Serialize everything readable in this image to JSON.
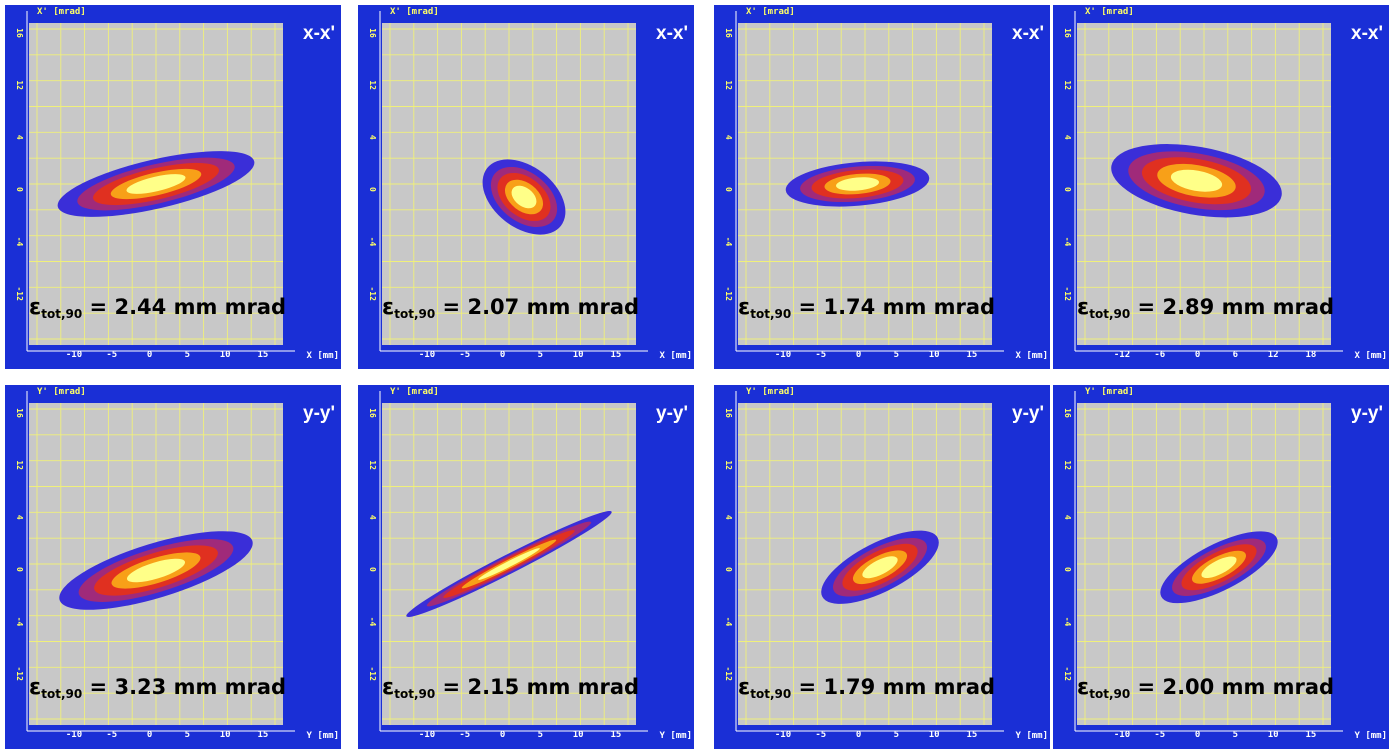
{
  "colors": {
    "background": "#1a2fd6",
    "plot_area": "#c8c8c8",
    "grid": "#f0f07a",
    "contour_outer": "#3a2ed8",
    "contour_mid": "#a02a7a",
    "contour_inner": "#e03020",
    "contour_core": "#f8a018",
    "contour_peak": "#ffff88"
  },
  "subscript": "tot,90",
  "chart_data": [
    {
      "type": "heatmap",
      "title": "x-x'",
      "xlabel": "X [mm]",
      "ylabel": "X' [mrad]",
      "xticks": [
        "-10",
        "-5",
        "0",
        "5",
        "10",
        "15"
      ],
      "yticks": [
        "16",
        "12",
        "4",
        "0",
        "-4",
        "-12"
      ],
      "emittance": "2.44 mm mrad",
      "distribution": {
        "center_x": 0,
        "center_y": 0,
        "spread": [
          14,
          3.6
        ],
        "tilt_deg": 13
      }
    },
    {
      "type": "heatmap",
      "title": "x-x'",
      "xlabel": "X [mm]",
      "ylabel": "X' [mrad]",
      "xticks": [
        "-10",
        "-5",
        "0",
        "5",
        "10",
        "15"
      ],
      "yticks": [
        "16",
        "12",
        "4",
        "0",
        "-4",
        "-12"
      ],
      "emittance": "2.07 mm mrad",
      "distribution": {
        "center_x": 2,
        "center_y": -2,
        "spread": [
          6.5,
          4.5
        ],
        "tilt_deg": -38
      }
    },
    {
      "type": "heatmap",
      "title": "x-x'",
      "xlabel": "X [mm]",
      "ylabel": "X' [mrad]",
      "xticks": [
        "-10",
        "-5",
        "0",
        "5",
        "10",
        "15"
      ],
      "yticks": [
        "16",
        "12",
        "4",
        "0",
        "-4",
        "-12"
      ],
      "emittance": "1.74 mm mrad",
      "distribution": {
        "center_x": -1,
        "center_y": 0,
        "spread": [
          10,
          3.2
        ],
        "tilt_deg": 5
      }
    },
    {
      "type": "heatmap",
      "title": "x-x'",
      "xlabel": "X [mm]",
      "ylabel": "X' [mrad]",
      "xticks": [
        "-12",
        "-6",
        "0",
        "6",
        "12",
        "18"
      ],
      "yticks": [
        "16",
        "12",
        "4",
        "0",
        "-4",
        "-12"
      ],
      "emittance": "2.89 mm mrad",
      "distribution": {
        "center_x": -1,
        "center_y": 0.5,
        "spread": [
          12,
          5
        ],
        "tilt_deg": -10
      }
    },
    {
      "type": "heatmap",
      "title": "y-y'",
      "xlabel": "Y [mm]",
      "ylabel": "Y' [mrad]",
      "xticks": [
        "-10",
        "-5",
        "0",
        "5",
        "10",
        "15"
      ],
      "yticks": [
        "16",
        "12",
        "4",
        "0",
        "-4",
        "-12"
      ],
      "emittance": "3.23 mm mrad",
      "distribution": {
        "center_x": 0,
        "center_y": -1,
        "spread": [
          14,
          4
        ],
        "tilt_deg": 17
      }
    },
    {
      "type": "heatmap",
      "title": "y-y'",
      "xlabel": "Y [mm]",
      "ylabel": "Y' [mrad]",
      "xticks": [
        "-10",
        "-5",
        "0",
        "5",
        "10",
        "15"
      ],
      "yticks": [
        "16",
        "12",
        "4",
        "0",
        "-4",
        "-12"
      ],
      "emittance": "2.15 mm mrad",
      "distribution": {
        "center_x": 0,
        "center_y": 0,
        "spread": [
          16,
          1.4
        ],
        "tilt_deg": 27
      }
    },
    {
      "type": "heatmap",
      "title": "y-y'",
      "xlabel": "Y [mm]",
      "ylabel": "Y' [mrad]",
      "xticks": [
        "-10",
        "-5",
        "0",
        "5",
        "10",
        "15"
      ],
      "yticks": [
        "16",
        "12",
        "4",
        "0",
        "-4",
        "-12"
      ],
      "emittance": "1.79 mm mrad",
      "distribution": {
        "center_x": 2,
        "center_y": -0.5,
        "spread": [
          9,
          3.6
        ],
        "tilt_deg": 27
      }
    },
    {
      "type": "heatmap",
      "title": "y-y'",
      "xlabel": "Y [mm]",
      "ylabel": "Y' [mrad]",
      "xticks": [
        "-10",
        "-5",
        "0",
        "5",
        "10",
        "15"
      ],
      "yticks": [
        "16",
        "12",
        "4",
        "0",
        "-4",
        "-12"
      ],
      "emittance": "2.00 mm mrad",
      "distribution": {
        "center_x": 2,
        "center_y": -0.5,
        "spread": [
          9,
          3.4
        ],
        "tilt_deg": 27
      }
    }
  ]
}
